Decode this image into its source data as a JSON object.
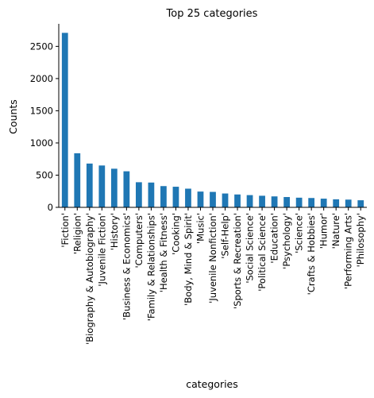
{
  "chart_data": {
    "type": "bar",
    "title": "Top 25 categories",
    "xlabel": "categories",
    "ylabel": "Counts",
    "ylim": [
      0,
      2850
    ],
    "yticks": [
      0,
      500,
      1000,
      1500,
      2000,
      2500
    ],
    "grid": false,
    "bar_color": "#1f77b4",
    "categories": [
      "'Fiction'",
      "'Religion'",
      "'Biography & Autobiography'",
      "'Juvenile Fiction'",
      "'History'",
      "'Business & Economics'",
      "'Computers'",
      "'Family & Relationships'",
      "'Health & Fitness'",
      "'Cooking'",
      "'Body, Mind & Spirit'",
      "'Music'",
      "'Juvenile Nonfiction'",
      "'Self-Help'",
      "'Sports & Recreation'",
      "'Social Science'",
      "'Political Science'",
      "'Education'",
      "'Psychology'",
      "'Science'",
      "'Crafts & Hobbies'",
      "'Humor'",
      "'Nature'",
      "'Performing Arts'",
      "'Philosophy'"
    ],
    "values": [
      2710,
      840,
      680,
      650,
      600,
      560,
      390,
      385,
      330,
      320,
      290,
      245,
      240,
      215,
      200,
      190,
      180,
      170,
      160,
      150,
      145,
      135,
      125,
      120,
      110
    ]
  }
}
